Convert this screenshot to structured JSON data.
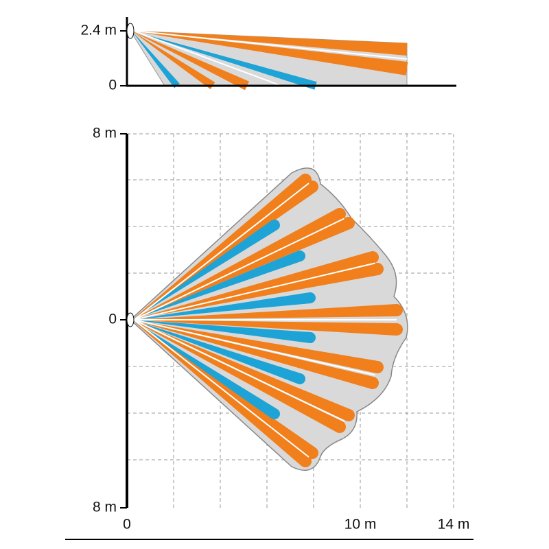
{
  "side_view": {
    "height_label": "2.4 m",
    "zero_label": "0"
  },
  "top_view": {
    "top_label": "8 m",
    "center_label": "0",
    "bottom_label": "8 m",
    "x_labels": [
      "0",
      "10 m",
      "14 m"
    ]
  }
}
